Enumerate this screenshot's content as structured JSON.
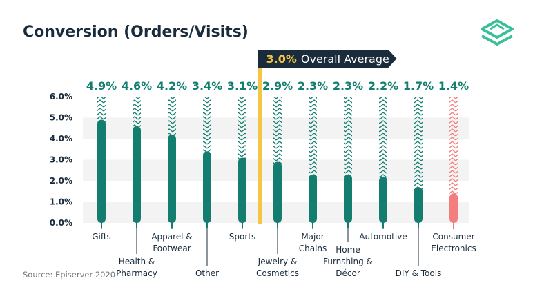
{
  "chart_data": {
    "type": "bar",
    "title": "Conversion (Orders/Visits)",
    "source": "Source: Episerver 2020",
    "average": {
      "value": 3.0,
      "value_label": "3.0%",
      "label": "Overall Average"
    },
    "ylim": [
      0,
      6
    ],
    "yticks": [
      {
        "value": 0,
        "label": "0.0%"
      },
      {
        "value": 1,
        "label": "1.0%"
      },
      {
        "value": 2,
        "label": "2.0%"
      },
      {
        "value": 3,
        "label": "3.0%"
      },
      {
        "value": 4,
        "label": "4.0%"
      },
      {
        "value": 5,
        "label": "5.0%"
      },
      {
        "value": 6,
        "label": "6.0%"
      }
    ],
    "categories": [
      {
        "lines": [
          "Gifts"
        ],
        "value": 4.9,
        "label": "4.9%",
        "highlight": false
      },
      {
        "lines": [
          "Health &",
          "Pharmacy"
        ],
        "value": 4.6,
        "label": "4.6%",
        "highlight": false
      },
      {
        "lines": [
          "Apparel &",
          "Footwear"
        ],
        "value": 4.2,
        "label": "4.2%",
        "highlight": false
      },
      {
        "lines": [
          "Other"
        ],
        "value": 3.4,
        "label": "3.4%",
        "highlight": false
      },
      {
        "lines": [
          "Sports"
        ],
        "value": 3.1,
        "label": "3.1%",
        "highlight": false
      },
      {
        "lines": [
          "Jewelry &",
          "Cosmetics"
        ],
        "value": 2.9,
        "label": "2.9%",
        "highlight": false
      },
      {
        "lines": [
          "Major",
          "Chains"
        ],
        "value": 2.3,
        "label": "2.3%",
        "highlight": false
      },
      {
        "lines": [
          "Home",
          "Furnshing &",
          "Décor"
        ],
        "value": 2.3,
        "label": "2.3%",
        "highlight": false
      },
      {
        "lines": [
          "Automotive"
        ],
        "value": 2.2,
        "label": "2.2%",
        "highlight": false
      },
      {
        "lines": [
          "DIY & Tools"
        ],
        "value": 1.7,
        "label": "1.7%",
        "highlight": false
      },
      {
        "lines": [
          "Consumer",
          "Electronics"
        ],
        "value": 1.4,
        "label": "1.4%",
        "highlight": true
      }
    ],
    "grid": "horizontal-bands",
    "colors": {
      "bar": "#137e70",
      "highlight_bar": "#f47d7d",
      "average_line": "#f5c644",
      "average_box": "#1a2b3c",
      "title": "#1a2b3c",
      "value_label": "#137e70",
      "logo": "#3bbf9a"
    }
  },
  "logo": {
    "icon": "episerver-logo-icon"
  }
}
